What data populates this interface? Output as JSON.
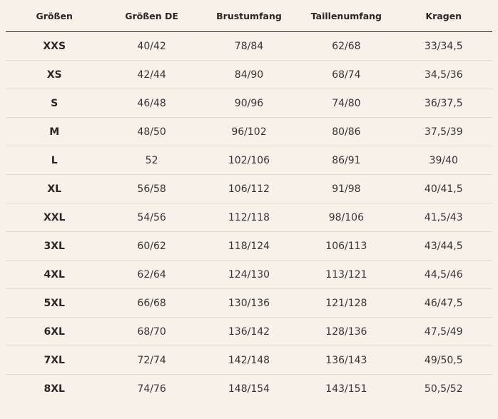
{
  "table": {
    "headers": [
      "Größen",
      "Größen DE",
      "Brustumfang",
      "Taillenumfang",
      "Kragen"
    ],
    "rows": [
      [
        "XXS",
        "40/42",
        "78/84",
        "62/68",
        "33/34,5"
      ],
      [
        "XS",
        "42/44",
        "84/90",
        "68/74",
        "34,5/36"
      ],
      [
        "S",
        "46/48",
        "90/96",
        "74/80",
        "36/37,5"
      ],
      [
        "M",
        "48/50",
        "96/102",
        "80/86",
        "37,5/39"
      ],
      [
        "L",
        "52",
        "102/106",
        "86/91",
        "39/40"
      ],
      [
        "XL",
        "56/58",
        "106/112",
        "91/98",
        "40/41,5"
      ],
      [
        "XXL",
        "54/56",
        "112/118",
        "98/106",
        "41,5/43"
      ],
      [
        "3XL",
        "60/62",
        "118/124",
        "106/113",
        "43/44,5"
      ],
      [
        "4XL",
        "62/64",
        "124/130",
        "113/121",
        "44,5/46"
      ],
      [
        "5XL",
        "66/68",
        "130/136",
        "121/128",
        "46/47,5"
      ],
      [
        "6XL",
        "68/70",
        "136/142",
        "128/136",
        "47,5/49"
      ],
      [
        "7XL",
        "72/74",
        "142/148",
        "136/143",
        "49/50,5"
      ],
      [
        "8XL",
        "74/76",
        "148/154",
        "143/151",
        "50,5/52"
      ]
    ]
  },
  "colors": {
    "background": "#f8f1ea",
    "text": "#2b2623",
    "header_rule": "#2b2623",
    "row_divider": "#e2d9d0"
  }
}
